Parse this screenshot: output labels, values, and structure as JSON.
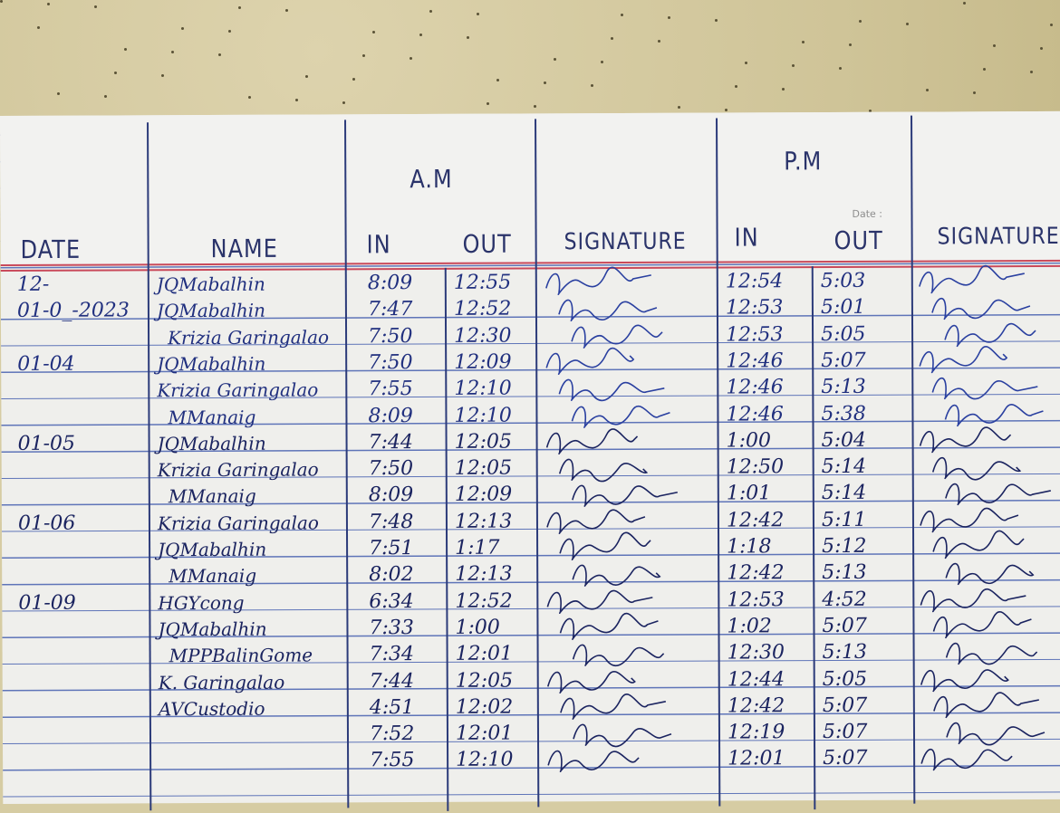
{
  "headers": {
    "date": "DATE",
    "name": "NAME",
    "am": "A.M",
    "am_in": "IN",
    "am_out": "OUT",
    "am_signature": "SIGNATURE",
    "pm": "P.M",
    "pm_in": "IN",
    "pm_out": "OUT",
    "pm_signature": "SIGNATURE",
    "printed_date_label": "Date :"
  },
  "rows": [
    {
      "date": "12-",
      "name": "JQMabalhin",
      "am_in": "8:09",
      "am_out": "12:55",
      "pm_in": "12:54",
      "pm_out": "5:03"
    },
    {
      "date": "01-0_-2023",
      "name": "JQMabalhin",
      "am_in": "7:47",
      "am_out": "12:52",
      "pm_in": "12:53",
      "pm_out": "5:01"
    },
    {
      "date": "",
      "name": "Krizia Garingalao",
      "am_in": "7:50",
      "am_out": "12:30",
      "pm_in": "12:53",
      "pm_out": "5:05"
    },
    {
      "date": "01-04",
      "name": "JQMabalhin",
      "am_in": "7:50",
      "am_out": "12:09",
      "pm_in": "12:46",
      "pm_out": "5:07"
    },
    {
      "date": "",
      "name": "Krizia Garingalao",
      "am_in": "7:55",
      "am_out": "12:10",
      "pm_in": "12:46",
      "pm_out": "5:13"
    },
    {
      "date": "",
      "name": "MManaig",
      "am_in": "8:09",
      "am_out": "12:10",
      "pm_in": "12:46",
      "pm_out": "5:38"
    },
    {
      "date": "01-05",
      "name": "JQMabalhin",
      "am_in": "7:44",
      "am_out": "12:05",
      "pm_in": "1:00",
      "pm_out": "5:04"
    },
    {
      "date": "",
      "name": "Krizia Garingalao",
      "am_in": "7:50",
      "am_out": "12:05",
      "pm_in": "12:50",
      "pm_out": "5:14"
    },
    {
      "date": "",
      "name": "MManaig",
      "am_in": "8:09",
      "am_out": "12:09",
      "pm_in": "1:01",
      "pm_out": "5:14"
    },
    {
      "date": "01-06",
      "name": "Krizia Garingalao",
      "am_in": "7:48",
      "am_out": "12:13",
      "pm_in": "12:42",
      "pm_out": "5:11"
    },
    {
      "date": "",
      "name": "JQMabalhin",
      "am_in": "7:51",
      "am_out": "1:17",
      "pm_in": "1:18",
      "pm_out": "5:12"
    },
    {
      "date": "",
      "name": "MManaig",
      "am_in": "8:02",
      "am_out": "12:13",
      "pm_in": "12:42",
      "pm_out": "5:13"
    },
    {
      "date": "01-09",
      "name": "HGYcong",
      "am_in": "6:34",
      "am_out": "12:52",
      "pm_in": "12:53",
      "pm_out": "4:52"
    },
    {
      "date": "",
      "name": "JQMabalhin",
      "am_in": "7:33",
      "am_out": "1:00",
      "pm_in": "1:02",
      "pm_out": "5:07"
    },
    {
      "date": "",
      "name": "MPPBalinGome",
      "am_in": "7:34",
      "am_out": "12:01",
      "pm_in": "12:30",
      "pm_out": "5:13"
    },
    {
      "date": "",
      "name": "K. Garingalao",
      "am_in": "7:44",
      "am_out": "12:05",
      "pm_in": "12:44",
      "pm_out": "5:05"
    },
    {
      "date": "",
      "name": "AVCustodio",
      "am_in": "4:51",
      "am_out": "12:02",
      "pm_in": "12:42",
      "pm_out": "5:07"
    },
    {
      "date": "",
      "name": "",
      "am_in": "7:52",
      "am_out": "12:01",
      "pm_in": "12:19",
      "pm_out": "5:07"
    },
    {
      "date": "",
      "name": "",
      "am_in": "7:55",
      "am_out": "12:10",
      "pm_in": "12:01",
      "pm_out": "5:07"
    }
  ],
  "colors": {
    "ink_blue": "#21307f",
    "ink_dark": "#1b2460",
    "red_margin": "#c9495a",
    "rule_blue": "#5e74b8",
    "wall": "#d6cca3"
  }
}
